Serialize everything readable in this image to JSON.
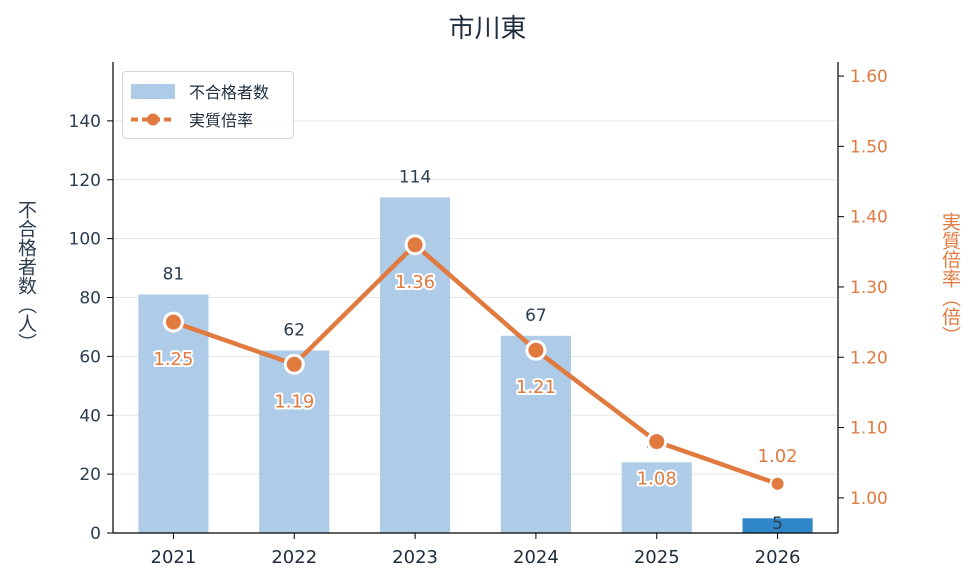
{
  "title": "市川東",
  "colors": {
    "bar": "#aecbe8",
    "bar_highlight": "#2f86c8",
    "line": "#e07a3f",
    "axis_left": "#2c3e50",
    "grid": "#e6e6e6"
  },
  "legend": {
    "bar_label": "不合格者数",
    "line_label": "実質倍率"
  },
  "chart_data": {
    "type": "bar",
    "title": "市川東",
    "categories": [
      "2021",
      "2022",
      "2023",
      "2024",
      "2025",
      "2026"
    ],
    "ylabel": "不合格者数（人）",
    "y2label": "実質倍率（倍）",
    "ylim": [
      0,
      160
    ],
    "y2lim": [
      0.95,
      1.62
    ],
    "yticks": [
      0,
      20,
      40,
      60,
      80,
      100,
      120,
      140
    ],
    "y2ticks": [
      "1.00",
      "1.10",
      "1.20",
      "1.30",
      "1.40",
      "1.50",
      "1.60"
    ],
    "grid": true,
    "legend_position": "top-left",
    "series": [
      {
        "name": "不合格者数",
        "kind": "bar",
        "axis": "left",
        "values": [
          81,
          62,
          114,
          67,
          24,
          5
        ],
        "labels": [
          "81",
          "62",
          "114",
          "67",
          "24",
          "5"
        ]
      },
      {
        "name": "実質倍率",
        "kind": "line",
        "axis": "right",
        "values": [
          1.25,
          1.19,
          1.36,
          1.21,
          1.08,
          1.02
        ],
        "labels": [
          "1.25",
          "1.19",
          "1.36",
          "1.21",
          "1.08",
          "1.02"
        ]
      }
    ]
  }
}
